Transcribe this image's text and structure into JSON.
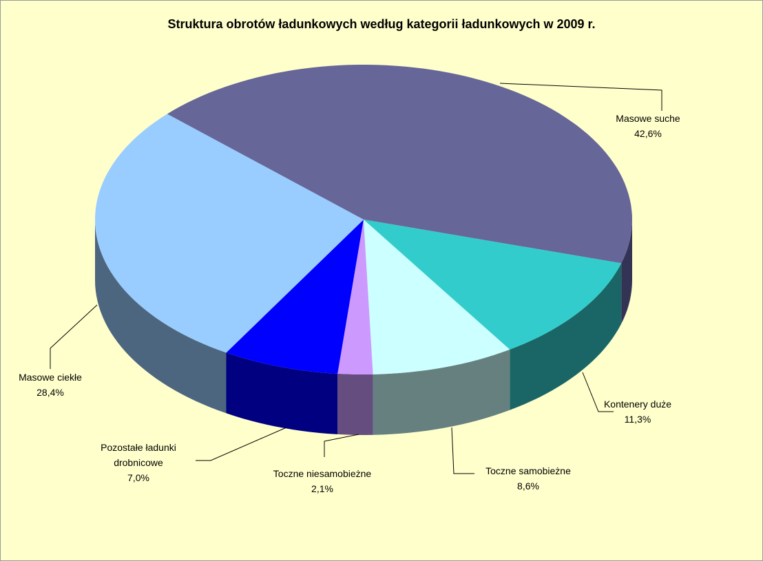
{
  "chart_data": {
    "type": "pie3d",
    "title": "Struktura obrotów ładunkowych według kategorii ładunkowych w 2009 r.",
    "categories": [
      "Masowe suche",
      "Kontenery  duże",
      "Toczne samobieżne",
      "Toczne niesamobieżne",
      "Pozostałe ładunki drobnicowe",
      "Masowe ciekłe"
    ],
    "values": [
      42.6,
      11.3,
      8.6,
      2.1,
      7.0,
      28.4
    ],
    "value_labels": [
      "42,6%",
      "11,3%",
      "8,6%",
      "2,1%",
      "7,0%",
      "28,4%"
    ],
    "colors": [
      "#666699",
      "#33cccc",
      "#ccffff",
      "#cc99ff",
      "#0000ff",
      "#99ccff"
    ],
    "side_colors": [
      "#333355",
      "#1a6666",
      "#668080",
      "#664d80",
      "#000080",
      "#4d6680"
    ]
  }
}
